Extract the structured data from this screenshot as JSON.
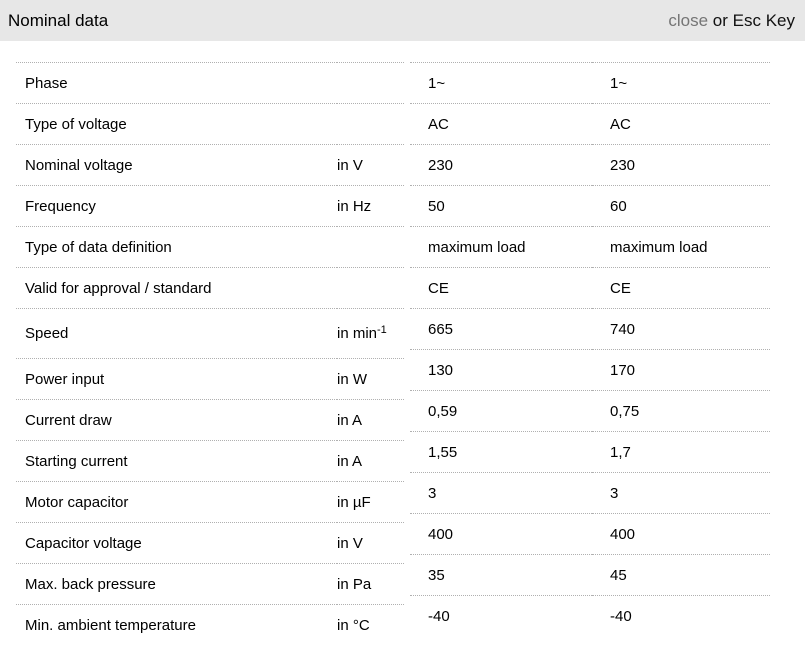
{
  "header": {
    "title": "Nominal data",
    "close_label": "close",
    "esc_hint": "or Esc Key"
  },
  "colors": {
    "header_bg": "#e7e7e7",
    "close_text": "#757575",
    "row_separator": "#b0b0b0",
    "body_text": "#000000"
  },
  "table": {
    "rows": [
      {
        "label": "Phase",
        "unit": "",
        "unit_sup": "",
        "values": [
          "1~",
          "1~"
        ]
      },
      {
        "label": "Type of voltage",
        "unit": "",
        "unit_sup": "",
        "values": [
          "AC",
          "AC"
        ]
      },
      {
        "label": "Nominal voltage",
        "unit": "in V",
        "unit_sup": "",
        "values": [
          "230",
          "230"
        ]
      },
      {
        "label": "Frequency",
        "unit": "in Hz",
        "unit_sup": "",
        "values": [
          "50",
          "60"
        ]
      },
      {
        "label": "Type of data definition",
        "unit": "",
        "unit_sup": "",
        "values": [
          "maximum load",
          "maximum load"
        ]
      },
      {
        "label": "Valid for approval / standard",
        "unit": "",
        "unit_sup": "",
        "values": [
          "CE",
          "CE"
        ]
      },
      {
        "label": "Speed",
        "unit": "in min",
        "unit_sup": "-1",
        "values": [
          "665",
          "740"
        ]
      },
      {
        "label": "Power input",
        "unit": "in W",
        "unit_sup": "",
        "values": [
          "130",
          "170"
        ]
      },
      {
        "label": "Current draw",
        "unit": "in A",
        "unit_sup": "",
        "values": [
          "0,59",
          "0,75"
        ]
      },
      {
        "label": "Starting current",
        "unit": "in A",
        "unit_sup": "",
        "values": [
          "1,55",
          "1,7"
        ]
      },
      {
        "label": "Motor capacitor",
        "unit": "in µF",
        "unit_sup": "",
        "values": [
          "3",
          "3"
        ]
      },
      {
        "label": "Capacitor voltage",
        "unit": "in V",
        "unit_sup": "",
        "values": [
          "400",
          "400"
        ]
      },
      {
        "label": "Max. back pressure",
        "unit": "in Pa",
        "unit_sup": "",
        "values": [
          "35",
          "45"
        ]
      },
      {
        "label": "Min. ambient temperature",
        "unit": "in °C",
        "unit_sup": "",
        "values": [
          "-40",
          "-40"
        ]
      }
    ]
  }
}
